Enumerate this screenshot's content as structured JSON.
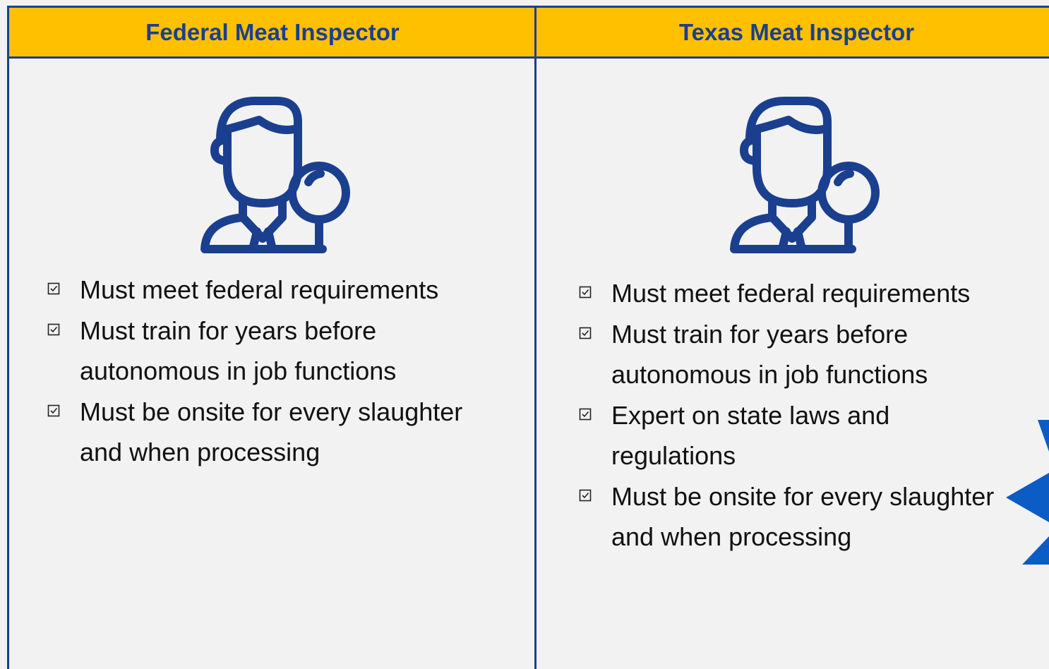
{
  "columns": [
    {
      "header": "Federal Meat Inspector",
      "items": [
        "Must meet federal requirements",
        "Must train for years before autonomous in job functions",
        "Must be onsite for every slaughter and when processing"
      ]
    },
    {
      "header": "Texas Meat Inspector",
      "items": [
        "Must meet federal requirements",
        "Must train for years before autonomous in job functions",
        "Expert on state laws and regulations",
        "Must be onsite for every slaughter and when processing"
      ]
    }
  ]
}
